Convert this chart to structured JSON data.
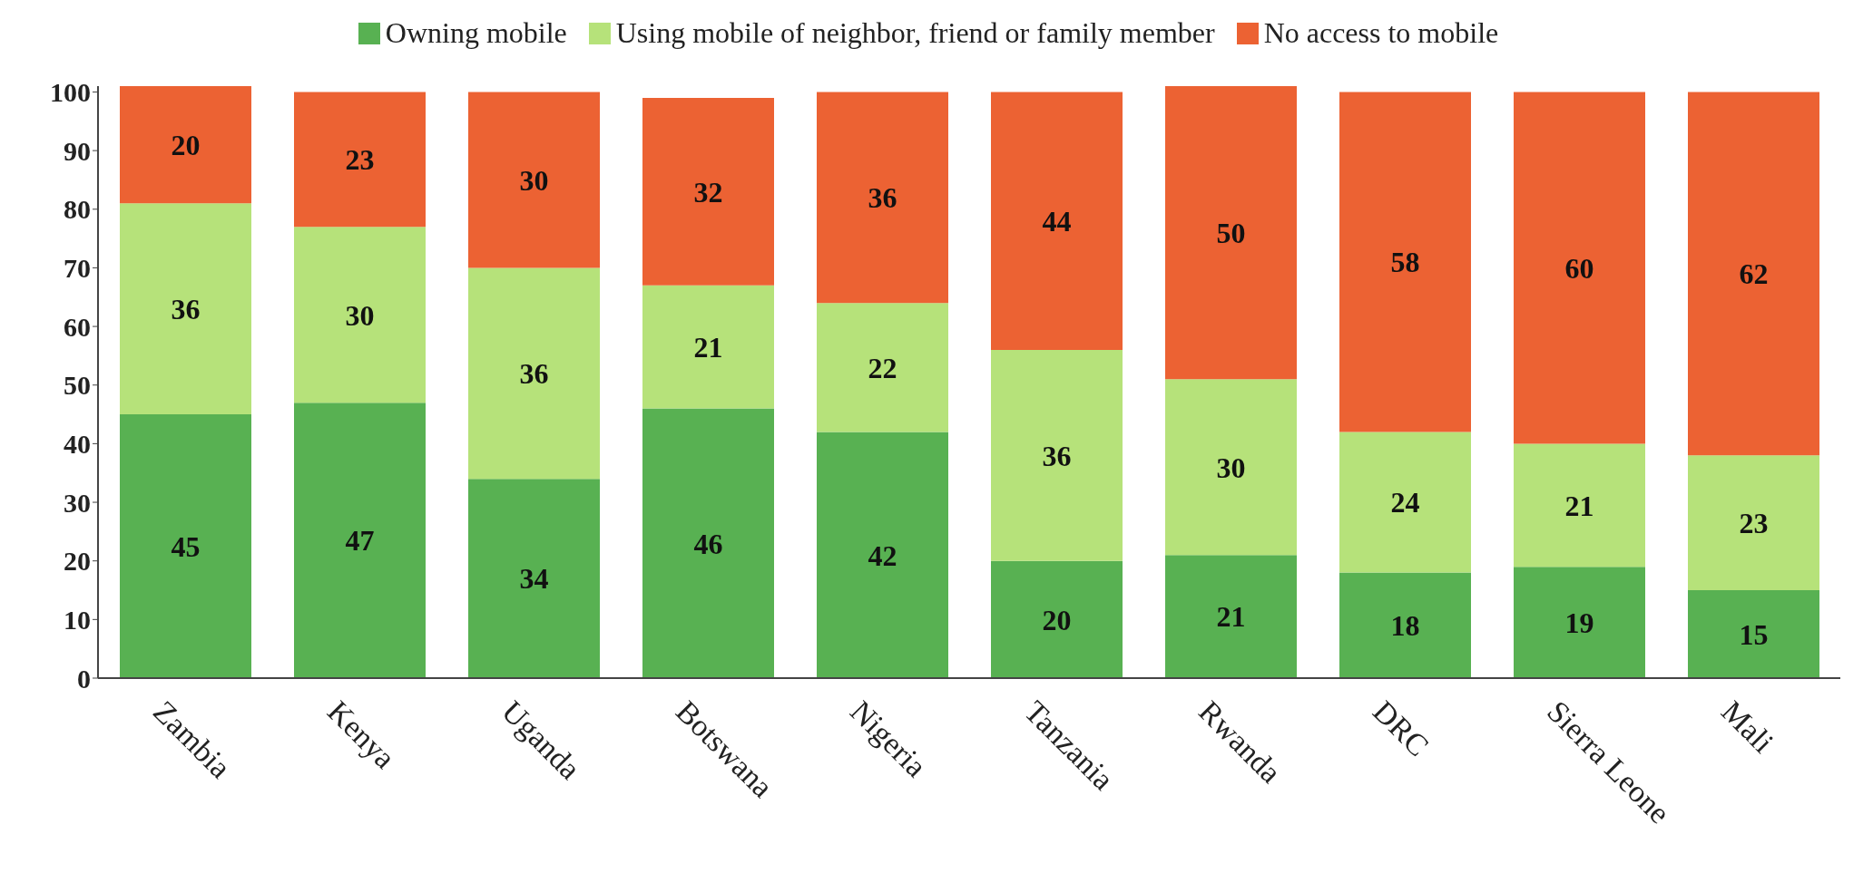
{
  "chart_data": {
    "type": "bar",
    "stacked": true,
    "categories": [
      "Zambia",
      "Kenya",
      "Uganda",
      "Botswana",
      "Nigeria",
      "Tanzania",
      "Rwanda",
      "DRC",
      "Sierra Leone",
      "Mali"
    ],
    "series": [
      {
        "name": "Owning mobile",
        "color": "#58b152",
        "values": [
          45,
          47,
          34,
          46,
          42,
          20,
          21,
          18,
          19,
          15
        ]
      },
      {
        "name": "Using mobile of neighbor, friend or family member",
        "color": "#b6e27a",
        "values": [
          36,
          30,
          36,
          21,
          22,
          36,
          30,
          24,
          21,
          23
        ]
      },
      {
        "name": "No access to mobile",
        "color": "#ec6233",
        "values": [
          20,
          23,
          30,
          32,
          36,
          44,
          50,
          58,
          60,
          62
        ]
      }
    ],
    "ylim": [
      0,
      101
    ],
    "yticks": [
      0,
      10,
      20,
      30,
      40,
      50,
      60,
      70,
      80,
      90,
      100
    ],
    "grid": false,
    "legend": "top",
    "data_labels": true
  }
}
